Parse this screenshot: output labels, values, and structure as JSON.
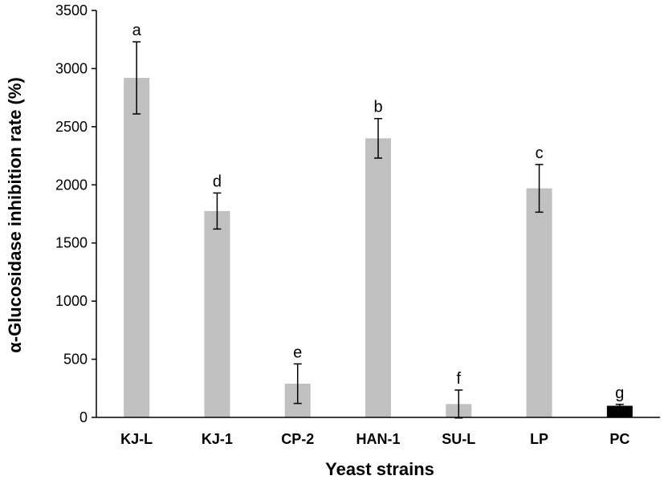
{
  "chart_data": {
    "type": "bar",
    "title": "",
    "xlabel": "Yeast strains",
    "ylabel": "α-Glucosidase inhibition rate (%)",
    "ylim": [
      0,
      3500
    ],
    "yticks": [
      0,
      500,
      1000,
      1500,
      2000,
      2500,
      3000,
      3500
    ],
    "grid": false,
    "categories": [
      "KJ-L",
      "KJ-1",
      "CP-2",
      "HAN-1",
      "SU-L",
      "LP",
      "PC"
    ],
    "values": [
      2920,
      1775,
      290,
      2400,
      115,
      1970,
      100
    ],
    "errors": [
      310,
      155,
      170,
      170,
      120,
      205,
      12
    ],
    "significance": [
      "a",
      "d",
      "e",
      "b",
      "f",
      "c",
      "g"
    ],
    "colors": [
      "#c0c0c0",
      "#c0c0c0",
      "#c0c0c0",
      "#c0c0c0",
      "#c0c0c0",
      "#c0c0c0",
      "#000000"
    ]
  }
}
